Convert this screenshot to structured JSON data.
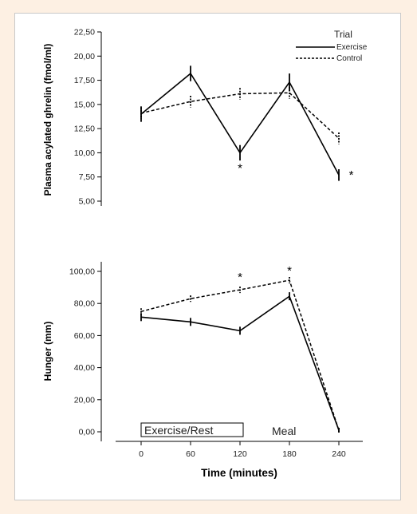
{
  "chart_data": [
    {
      "type": "line",
      "ylabel": "Plasma acylated ghrelin (fmol/ml)",
      "ylim": [
        5.0,
        22.5
      ],
      "yticks": [
        "5,00",
        "7,50",
        "10,00",
        "12,50",
        "15,00",
        "17,50",
        "20,00",
        "22,50"
      ],
      "x": [
        0,
        60,
        120,
        180,
        240
      ],
      "legend": {
        "title": "Trial",
        "position": "top-right"
      },
      "series": [
        {
          "name": "Exercise",
          "style": "solid",
          "values": [
            14.0,
            18.2,
            10.0,
            17.3,
            7.7
          ],
          "error": [
            0.8,
            0.8,
            0.8,
            0.9,
            0.6
          ]
        },
        {
          "name": "Control",
          "style": "dashed",
          "values": [
            14.1,
            15.3,
            16.1,
            16.2,
            11.5
          ],
          "error": [
            0.6,
            0.6,
            0.6,
            0.6,
            0.6
          ]
        }
      ],
      "annotations": [
        {
          "text": "*",
          "x": 120,
          "y": 8.5
        },
        {
          "text": "*",
          "x": 255,
          "y": 7.8
        }
      ]
    },
    {
      "type": "line",
      "ylabel": "Hunger (mm)",
      "xlabel": "Time (minutes)",
      "xticks": [
        "0",
        "60",
        "120",
        "180",
        "240"
      ],
      "ylim": [
        0,
        100
      ],
      "yticks": [
        "0,00",
        "20,00",
        "40,00",
        "60,00",
        "80,00",
        "100,00"
      ],
      "x": [
        0,
        60,
        120,
        180,
        240
      ],
      "series": [
        {
          "name": "Exercise",
          "style": "solid",
          "values": [
            71.5,
            68.5,
            63.0,
            84.5,
            1.0
          ],
          "error": [
            2.5,
            2.5,
            2.5,
            2.5,
            1.5
          ]
        },
        {
          "name": "Control",
          "style": "dashed",
          "values": [
            75.0,
            83.0,
            88.5,
            94.5,
            1.0
          ],
          "error": [
            2.0,
            2.0,
            2.0,
            2.0,
            1.5
          ]
        }
      ],
      "annotations": [
        {
          "text": "*",
          "x": 120,
          "y": 97
        },
        {
          "text": "*",
          "x": 180,
          "y": 101
        }
      ],
      "box_label": "Exercise/Rest",
      "text_label": "Meal"
    }
  ]
}
